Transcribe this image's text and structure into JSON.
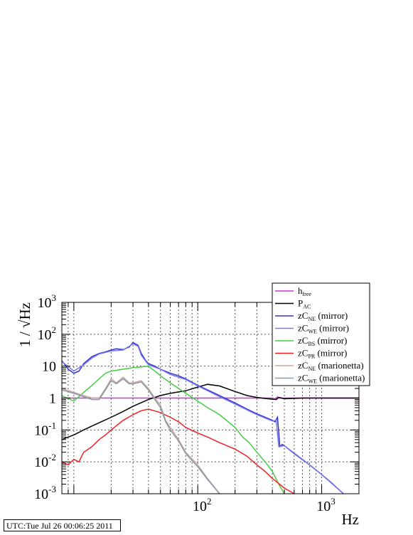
{
  "chart_data": {
    "type": "line",
    "xlabel": "Hz",
    "ylabel": "1 / √Hz",
    "xscale": "log",
    "yscale": "log",
    "xlim": [
      8,
      2000
    ],
    "ylim": [
      0.001,
      1000
    ],
    "xticks": [
      {
        "value": 100,
        "base": "10",
        "exp": "2"
      },
      {
        "value": 1000,
        "base": "10",
        "exp": "3"
      }
    ],
    "yticks": [
      {
        "value": 1000,
        "base": "10",
        "exp": "3"
      },
      {
        "value": 100,
        "base": "10",
        "exp": "2"
      },
      {
        "value": 10,
        "text": "10"
      },
      {
        "value": 1,
        "text": "1"
      },
      {
        "value": 0.1,
        "base": "10",
        "exp": "-1"
      },
      {
        "value": 0.01,
        "base": "10",
        "exp": "-2"
      },
      {
        "value": 0.001,
        "base": "10",
        "exp": "-3"
      }
    ],
    "grid": true,
    "legend_position": "top-right",
    "series": [
      {
        "name": "free",
        "legend_main": "h",
        "legend_sub": "free",
        "legend_suffix": "",
        "color": "#cc33cc",
        "x": [
          8,
          20,
          50,
          100,
          200,
          400,
          420,
          440,
          460,
          500,
          1000,
          2000
        ],
        "y": [
          1,
          1,
          1,
          1,
          1,
          1,
          0.92,
          1.08,
          1,
          1,
          1,
          1
        ]
      },
      {
        "name": "P AC",
        "legend_main": "P",
        "legend_sub": "AC",
        "legend_suffix": "",
        "color": "#000000",
        "x": [
          8,
          10,
          12,
          15,
          20,
          25,
          30,
          40,
          50,
          60,
          80,
          100,
          120,
          150,
          200,
          250,
          300,
          350,
          400,
          430,
          450,
          500,
          700,
          1000,
          1500,
          2000
        ],
        "y": [
          0.05,
          0.07,
          0.1,
          0.15,
          0.25,
          0.38,
          0.55,
          0.9,
          1.2,
          1.4,
          1.7,
          2.2,
          2.7,
          2.4,
          1.6,
          1.2,
          1.05,
          0.97,
          0.92,
          0.9,
          1.05,
          0.95,
          1.0,
          1.0,
          1.0,
          1.0
        ]
      },
      {
        "name": "zC NE (mirror)",
        "legend_main": "zC",
        "legend_sub": "NE",
        "legend_suffix": " (mirror)",
        "color": "#3333cc",
        "x": [
          8,
          9,
          10,
          11,
          12,
          14,
          16,
          18,
          20,
          22,
          25,
          28,
          30,
          33,
          35,
          38,
          40,
          45,
          50,
          60,
          70,
          80,
          100,
          120,
          150,
          200,
          250,
          300,
          350,
          400,
          420,
          440,
          460,
          480,
          500,
          600,
          800,
          1000,
          1200,
          1500,
          2000
        ],
        "y": [
          15,
          8,
          6,
          7,
          12,
          20,
          25,
          28,
          32,
          35,
          33,
          40,
          55,
          45,
          25,
          15,
          12,
          10,
          8,
          6,
          5,
          4,
          2.5,
          1.8,
          1.2,
          0.7,
          0.45,
          0.32,
          0.25,
          0.2,
          0.18,
          0.25,
          0.03,
          0.035,
          0.032,
          0.018,
          0.008,
          0.004,
          0.0022,
          0.001,
          0.0004
        ]
      },
      {
        "name": "zC WE (mirror)",
        "legend_main": "zC",
        "legend_sub": "WE",
        "legend_suffix": " (mirror)",
        "color": "#7777ee",
        "x": [
          8,
          10,
          12,
          14,
          16,
          18,
          20,
          25,
          30,
          33,
          35,
          40,
          50,
          60,
          80,
          100,
          150,
          200,
          300,
          400,
          430,
          450,
          500,
          700,
          1000,
          1500,
          2000
        ],
        "y": [
          14,
          7,
          11,
          18,
          24,
          27,
          30,
          32,
          50,
          42,
          22,
          11,
          8,
          5.5,
          3.8,
          2.4,
          1.1,
          0.65,
          0.3,
          0.19,
          0.2,
          0.03,
          0.032,
          0.012,
          0.004,
          0.001,
          0.0004
        ]
      },
      {
        "name": "zC BS (mirror)",
        "legend_main": "zC",
        "legend_sub": "BS",
        "legend_suffix": " (mirror)",
        "color": "#44cc44",
        "x": [
          8,
          10,
          12,
          14,
          16,
          18,
          20,
          25,
          30,
          35,
          40,
          45,
          50,
          60,
          70,
          80,
          100,
          120,
          150,
          200,
          230,
          260,
          300,
          350,
          400,
          450,
          500
        ],
        "y": [
          1.2,
          0.8,
          1.5,
          2.5,
          4,
          6,
          7,
          8,
          9,
          9.5,
          10,
          7,
          5,
          3,
          2,
          1.4,
          0.8,
          0.5,
          0.3,
          0.12,
          0.06,
          0.04,
          0.02,
          0.01,
          0.005,
          0.002,
          0.001
        ]
      },
      {
        "name": "zC PR (mirror)",
        "legend_main": "zC",
        "legend_sub": "PR",
        "legend_suffix": " (mirror)",
        "color": "#ee2222",
        "x": [
          8,
          9,
          10,
          11,
          12,
          14,
          16,
          18,
          20,
          25,
          30,
          35,
          40,
          50,
          60,
          70,
          80,
          100,
          120,
          150,
          200,
          250,
          300,
          350,
          400,
          500,
          600,
          800
        ],
        "y": [
          0.01,
          0.008,
          0.012,
          0.01,
          0.02,
          0.03,
          0.05,
          0.07,
          0.1,
          0.2,
          0.3,
          0.4,
          0.45,
          0.35,
          0.25,
          0.18,
          0.12,
          0.08,
          0.06,
          0.04,
          0.025,
          0.015,
          0.008,
          0.005,
          0.003,
          0.0015,
          0.001,
          0.0008
        ]
      },
      {
        "name": "zC NE (marionetta)",
        "legend_main": "zC",
        "legend_sub": "NE",
        "legend_suffix": " (marionetta)",
        "color": "#c8a89a",
        "x": [
          8,
          10,
          12,
          14,
          16,
          18,
          20,
          22,
          25,
          28,
          30,
          35,
          40,
          45,
          50,
          55,
          60,
          70,
          80,
          100,
          120,
          150
        ],
        "y": [
          2,
          1.5,
          1.2,
          1,
          1,
          2,
          4,
          3,
          4.5,
          3,
          3,
          3.5,
          2,
          1,
          0.6,
          0.2,
          0.12,
          0.05,
          0.02,
          0.008,
          0.003,
          0.001
        ]
      },
      {
        "name": "zC WE (marionetta)",
        "legend_main": "zC",
        "legend_sub": "WE",
        "legend_suffix": " (marionetta)",
        "color": "#8899aa",
        "x": [
          8,
          10,
          12,
          14,
          16,
          18,
          20,
          22,
          25,
          28,
          30,
          35,
          40,
          45,
          50,
          55,
          60,
          70,
          80,
          100,
          120,
          150
        ],
        "y": [
          1.8,
          1.4,
          1.1,
          0.9,
          0.9,
          1.8,
          3.5,
          2.8,
          4,
          2.8,
          2.8,
          3.2,
          1.8,
          0.9,
          0.5,
          0.18,
          0.1,
          0.045,
          0.018,
          0.007,
          0.0028,
          0.001
        ]
      }
    ]
  },
  "timestamp": "UTC:Tue Jul 26 00:06:25 2011"
}
